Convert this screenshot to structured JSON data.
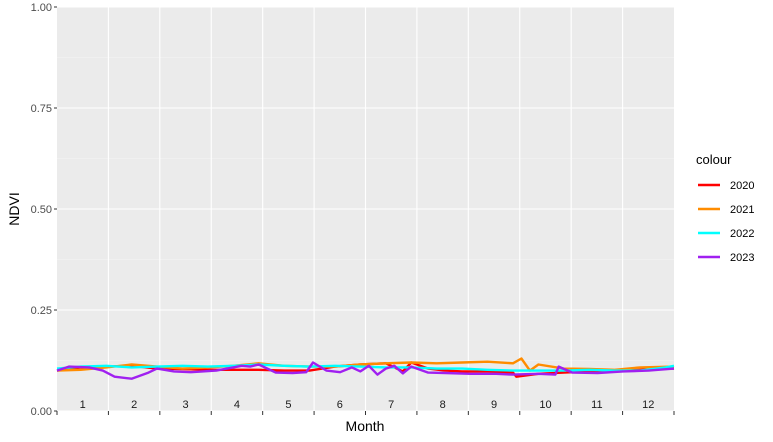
{
  "chart_data": {
    "type": "line",
    "xlabel": "Month",
    "ylabel": "NDVI",
    "ylim": [
      0,
      1
    ],
    "yticks": [
      "0.00",
      "0.25",
      "0.50",
      "0.75",
      "1.00"
    ],
    "month_labels": [
      "1",
      "2",
      "3",
      "4",
      "5",
      "6",
      "7",
      "8",
      "9",
      "10",
      "11",
      "12"
    ],
    "x_range_days": [
      1,
      365
    ],
    "grid": true,
    "legend": {
      "title": "colour",
      "position": "right"
    },
    "series": [
      {
        "name": "2020",
        "color": "#FF0000",
        "x": [
          1,
          15,
          30,
          45,
          60,
          75,
          90,
          105,
          120,
          135,
          150,
          165,
          180,
          195,
          205,
          210,
          220,
          230,
          240,
          255,
          270,
          272,
          285,
          300,
          315,
          330,
          345,
          365
        ],
        "y": [
          0.1,
          0.108,
          0.11,
          0.112,
          0.105,
          0.104,
          0.102,
          0.102,
          0.102,
          0.1,
          0.1,
          0.11,
          0.115,
          0.118,
          0.098,
          0.12,
          0.105,
          0.1,
          0.098,
          0.098,
          0.095,
          0.085,
          0.092,
          0.095,
          0.098,
          0.1,
          0.102,
          0.105
        ]
      },
      {
        "name": "2021",
        "color": "#FF8C00",
        "x": [
          1,
          15,
          30,
          45,
          60,
          75,
          90,
          105,
          120,
          135,
          150,
          165,
          180,
          195,
          210,
          225,
          240,
          255,
          270,
          275,
          280,
          285,
          300,
          315,
          330,
          345,
          365
        ],
        "y": [
          0.1,
          0.102,
          0.108,
          0.115,
          0.11,
          0.105,
          0.108,
          0.112,
          0.118,
          0.112,
          0.11,
          0.11,
          0.115,
          0.118,
          0.12,
          0.118,
          0.12,
          0.122,
          0.118,
          0.13,
          0.1,
          0.115,
          0.105,
          0.104,
          0.102,
          0.108,
          0.11
        ]
      },
      {
        "name": "2022",
        "color": "#00FFFF",
        "x": [
          1,
          15,
          30,
          45,
          60,
          75,
          90,
          105,
          120,
          135,
          150,
          165,
          180,
          195,
          210,
          225,
          240,
          255,
          270,
          285,
          300,
          315,
          330,
          345,
          360,
          365
        ],
        "y": [
          0.105,
          0.11,
          0.112,
          0.108,
          0.11,
          0.112,
          0.11,
          0.112,
          0.115,
          0.112,
          0.11,
          0.112,
          0.11,
          0.108,
          0.108,
          0.105,
          0.105,
          0.102,
          0.1,
          0.1,
          0.1,
          0.102,
          0.1,
          0.1,
          0.108,
          0.112
        ]
      },
      {
        "name": "2023",
        "color": "#A020F0",
        "x": [
          1,
          8,
          20,
          28,
          35,
          45,
          55,
          60,
          70,
          80,
          95,
          110,
          115,
          120,
          130,
          140,
          148,
          152,
          160,
          168,
          175,
          180,
          185,
          190,
          195,
          200,
          205,
          210,
          220,
          230,
          245,
          260,
          270,
          285,
          295,
          297,
          305,
          320,
          335,
          350,
          365
        ],
        "y": [
          0.1,
          0.11,
          0.108,
          0.1,
          0.085,
          0.08,
          0.095,
          0.105,
          0.098,
          0.096,
          0.1,
          0.112,
          0.11,
          0.115,
          0.095,
          0.094,
          0.096,
          0.12,
          0.1,
          0.096,
          0.108,
          0.098,
          0.112,
          0.09,
          0.105,
          0.112,
          0.093,
          0.11,
          0.095,
          0.094,
          0.092,
          0.092,
          0.09,
          0.092,
          0.09,
          0.11,
          0.095,
          0.094,
          0.098,
          0.1,
          0.105
        ]
      }
    ]
  }
}
